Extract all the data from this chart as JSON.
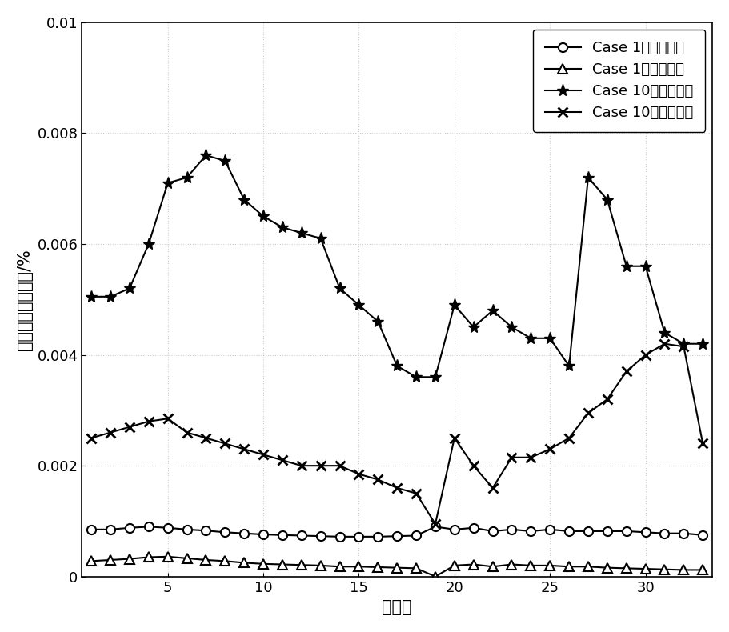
{
  "x": [
    1,
    2,
    3,
    4,
    5,
    6,
    7,
    8,
    9,
    10,
    11,
    12,
    13,
    14,
    15,
    16,
    17,
    18,
    19,
    20,
    21,
    22,
    23,
    24,
    25,
    26,
    27,
    28,
    29,
    30,
    31,
    32,
    33
  ],
  "case1_corr": [
    0.00085,
    0.00085,
    0.00088,
    0.0009,
    0.00088,
    0.00085,
    0.00083,
    0.0008,
    0.00078,
    0.00076,
    0.00075,
    0.00074,
    0.00073,
    0.00072,
    0.00072,
    0.00072,
    0.00073,
    0.00074,
    0.0009,
    0.00085,
    0.00088,
    0.00082,
    0.00085,
    0.00082,
    0.00085,
    0.00082,
    0.00082,
    0.00082,
    0.00082,
    0.0008,
    0.00078,
    0.00078,
    0.00075
  ],
  "case1_nocorr": [
    0.00028,
    0.0003,
    0.00032,
    0.00035,
    0.00036,
    0.00033,
    0.0003,
    0.00028,
    0.00025,
    0.00023,
    0.00022,
    0.00021,
    0.0002,
    0.00018,
    0.00018,
    0.00017,
    0.00016,
    0.00015,
    2e-06,
    0.0002,
    0.00022,
    0.00018,
    0.00022,
    0.0002,
    0.0002,
    0.00018,
    0.00018,
    0.00016,
    0.00015,
    0.00014,
    0.00013,
    0.00012,
    0.00012
  ],
  "case10_corr": [
    0.00505,
    0.00505,
    0.0052,
    0.006,
    0.0071,
    0.0072,
    0.0076,
    0.0075,
    0.0068,
    0.0065,
    0.0063,
    0.0062,
    0.0061,
    0.0052,
    0.0049,
    0.0046,
    0.0038,
    0.0036,
    0.0036,
    0.0049,
    0.0045,
    0.0048,
    0.0045,
    0.0043,
    0.0043,
    0.0038,
    0.0072,
    0.0068,
    0.0056,
    0.0056,
    0.0044,
    0.0042,
    0.0042
  ],
  "case10_nocorr": [
    0.0025,
    0.0026,
    0.0027,
    0.0028,
    0.00285,
    0.0026,
    0.0025,
    0.0024,
    0.0023,
    0.0022,
    0.0021,
    0.002,
    0.002,
    0.002,
    0.00185,
    0.00175,
    0.0016,
    0.0015,
    0.00095,
    0.0025,
    0.002,
    0.0016,
    0.00215,
    0.00215,
    0.0023,
    0.0025,
    0.00295,
    0.0032,
    0.0037,
    0.004,
    0.0042,
    0.00415,
    0.0024
  ],
  "xlabel": "节点号",
  "ylabel": "节点电压均値误差/%",
  "legend": [
    "Case 1计及相关性",
    "Case 1不计相关性",
    "Case 10计及相关性",
    "Case 10不计相关性"
  ],
  "xlim_min": 0.5,
  "xlim_max": 33.5,
  "ylim": [
    0,
    0.01
  ],
  "yticks": [
    0,
    0.002,
    0.004,
    0.006,
    0.008,
    0.01
  ],
  "ytick_labels": [
    "0",
    "0.002",
    "0.004",
    "0.006",
    "0.008",
    "0.01"
  ],
  "xticks": [
    5,
    10,
    15,
    20,
    25,
    30
  ],
  "line_color": "#000000",
  "background_color": "#ffffff",
  "fontsize_label": 15,
  "fontsize_tick": 13,
  "fontsize_legend": 13
}
